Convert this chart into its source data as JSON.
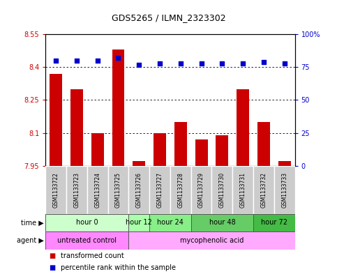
{
  "title": "GDS5265 / ILMN_2323302",
  "samples": [
    "GSM1133722",
    "GSM1133723",
    "GSM1133724",
    "GSM1133725",
    "GSM1133726",
    "GSM1133727",
    "GSM1133728",
    "GSM1133729",
    "GSM1133730",
    "GSM1133731",
    "GSM1133732",
    "GSM1133733"
  ],
  "transformed_count": [
    8.37,
    8.3,
    8.1,
    8.48,
    7.97,
    8.1,
    8.15,
    8.07,
    8.09,
    8.3,
    8.15,
    7.97
  ],
  "percentile_rank": [
    80,
    80,
    80,
    82,
    77,
    78,
    78,
    78,
    78,
    78,
    79,
    78
  ],
  "ylim_left": [
    7.95,
    8.55
  ],
  "ylim_right": [
    0,
    100
  ],
  "yticks_left": [
    7.95,
    8.1,
    8.25,
    8.4,
    8.55
  ],
  "yticks_right": [
    0,
    25,
    50,
    75,
    100
  ],
  "ytick_labels_left": [
    "7.95",
    "8.1",
    "8.25",
    "8.4",
    "8.55"
  ],
  "ytick_labels_right": [
    "0",
    "25",
    "50",
    "75",
    "100%"
  ],
  "bar_color": "#cc0000",
  "dot_color": "#0000cc",
  "time_groups": [
    {
      "label": "hour 0",
      "start": 0,
      "end": 4,
      "color": "#ccffcc"
    },
    {
      "label": "hour 12",
      "start": 4,
      "end": 5,
      "color": "#aaffaa"
    },
    {
      "label": "hour 24",
      "start": 5,
      "end": 7,
      "color": "#88ee88"
    },
    {
      "label": "hour 48",
      "start": 7,
      "end": 10,
      "color": "#66cc66"
    },
    {
      "label": "hour 72",
      "start": 10,
      "end": 12,
      "color": "#44bb44"
    }
  ],
  "agent_groups": [
    {
      "label": "untreated control",
      "start": 0,
      "end": 4,
      "color": "#ff88ff"
    },
    {
      "label": "mycophenolic acid",
      "start": 4,
      "end": 12,
      "color": "#ffaaff"
    }
  ],
  "legend_bar_label": "transformed count",
  "legend_dot_label": "percentile rank within the sample",
  "time_label": "time",
  "agent_label": "agent"
}
